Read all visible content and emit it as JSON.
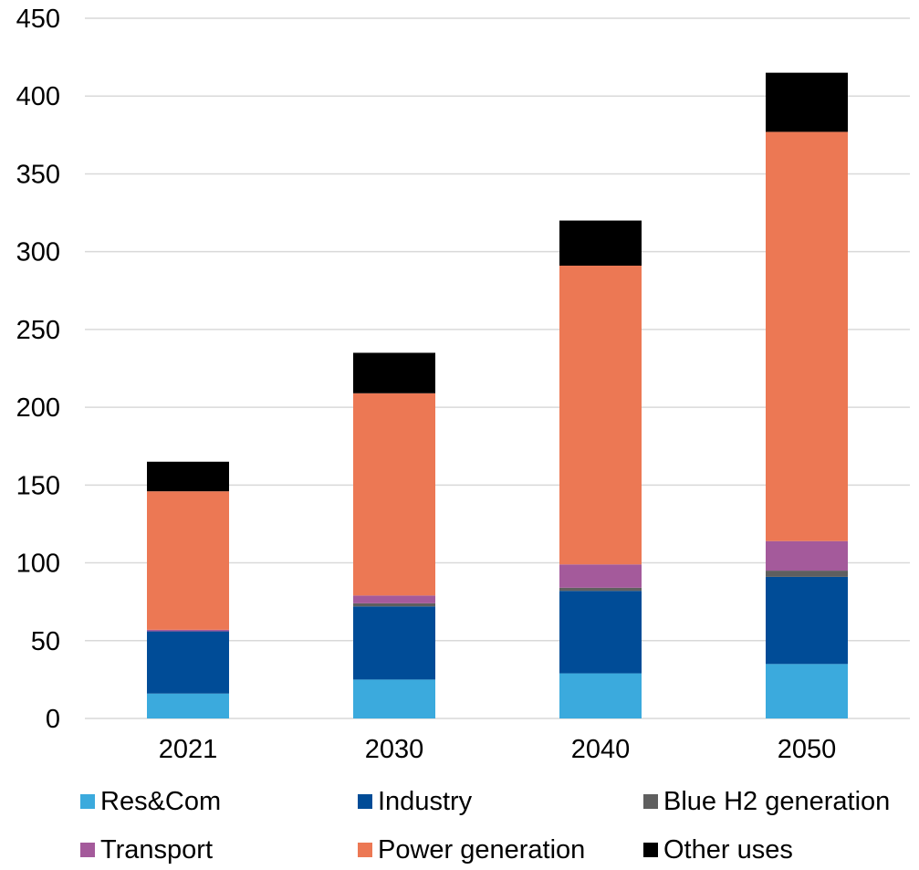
{
  "chart_data": {
    "type": "bar",
    "stacked": true,
    "categories": [
      "2021",
      "2030",
      "2040",
      "2050"
    ],
    "series": [
      {
        "name": "Res&Com",
        "color": "#3BAADD",
        "values": [
          16,
          25,
          29,
          35
        ]
      },
      {
        "name": "Industry",
        "color": "#004C97",
        "values": [
          40,
          47,
          53,
          56
        ]
      },
      {
        "name": "Blue H2 generation",
        "color": "#5F5F5F",
        "values": [
          0,
          2,
          2,
          4
        ]
      },
      {
        "name": "Transport",
        "color": "#A45A9B",
        "values": [
          1,
          5,
          15,
          19
        ]
      },
      {
        "name": "Power generation",
        "color": "#EC7854",
        "values": [
          89,
          130,
          192,
          263
        ]
      },
      {
        "name": "Other uses",
        "color": "#000000",
        "values": [
          19,
          26,
          29,
          38
        ]
      }
    ],
    "y_ticks": [
      "0",
      "50",
      "100",
      "150",
      "200",
      "250",
      "300",
      "350",
      "400",
      "450"
    ],
    "ylim": [
      0,
      450
    ],
    "grid": true,
    "legend_position": "bottom",
    "title": "",
    "xlabel": "",
    "ylabel": ""
  }
}
